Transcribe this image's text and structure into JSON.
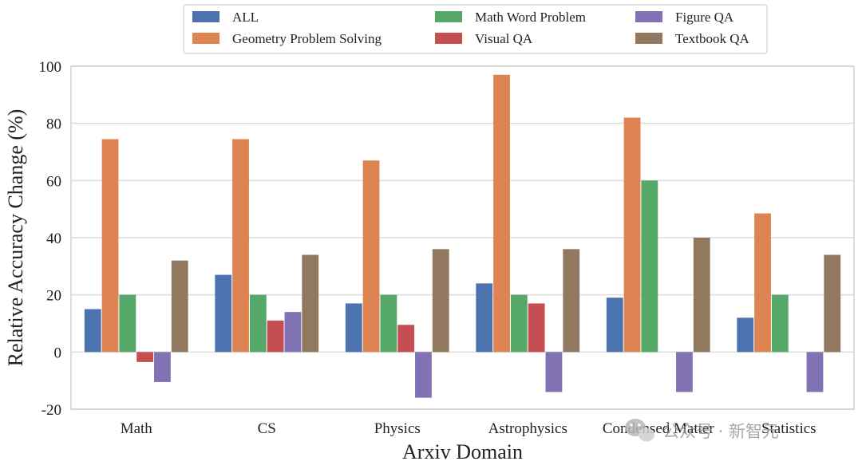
{
  "chart_data": {
    "type": "bar",
    "categories": [
      "Math",
      "CS",
      "Physics",
      "Astrophysics",
      "Condensed Matter",
      "Statistics"
    ],
    "xlabel": "Arxiv Domain",
    "ylabel": "Relative Accuracy Change (%)",
    "ylim": [
      -20,
      100
    ],
    "yticks": [
      -20,
      0,
      20,
      40,
      60,
      80,
      100
    ],
    "grid": true,
    "legend_position": "top",
    "series": [
      {
        "name": "ALL",
        "color": "#4c72b0",
        "values": [
          15,
          27,
          17,
          24,
          19,
          12
        ]
      },
      {
        "name": "Geometry Problem Solving",
        "color": "#dd8452",
        "values": [
          74.5,
          74.5,
          67,
          97,
          82,
          48.5
        ]
      },
      {
        "name": "Math Word Problem",
        "color": "#55a868",
        "values": [
          20,
          20,
          20,
          20,
          60,
          20
        ]
      },
      {
        "name": "Visual QA",
        "color": "#c44e52",
        "values": [
          -3.5,
          11,
          9.5,
          17,
          null,
          null
        ]
      },
      {
        "name": "Figure QA",
        "color": "#8172b3",
        "values": [
          -10.5,
          14,
          -16,
          -14,
          -14,
          -14
        ]
      },
      {
        "name": "Textbook QA",
        "color": "#937860",
        "values": [
          32,
          34,
          36,
          36,
          40,
          34
        ]
      }
    ]
  },
  "watermark": {
    "icon": "wechat-icon",
    "text": "公众号 · 新智元"
  }
}
